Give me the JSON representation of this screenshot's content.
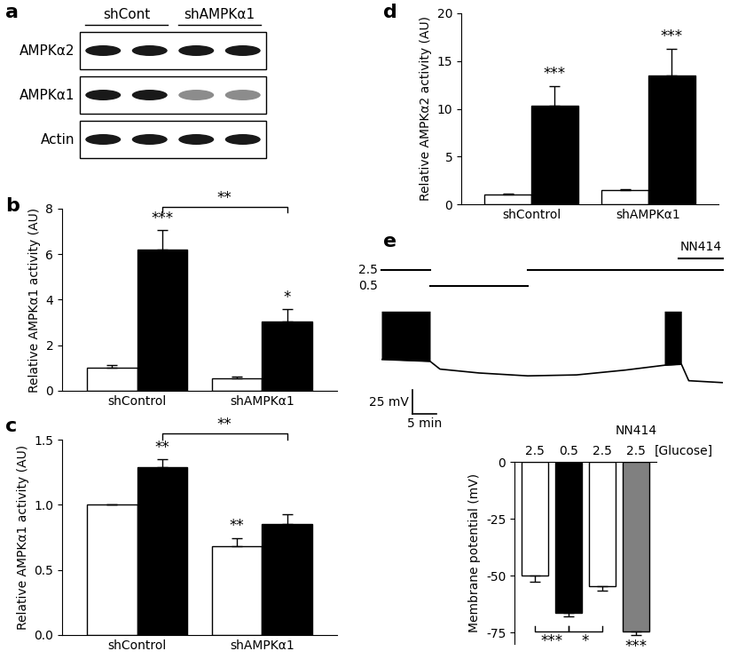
{
  "chart_data": [
    {
      "type": "blot",
      "panel_label": "a",
      "groups": [
        "shCont",
        "shAMPKα1"
      ],
      "rows": [
        "AMPKα2",
        "AMPKα1",
        "Actin"
      ]
    },
    {
      "type": "bar",
      "panel_label": "b",
      "categories": [
        "shControl",
        "shAMPKα1"
      ],
      "ylabel": "Relative AMPKα1 activity (AU)",
      "ylim": [
        0,
        8
      ],
      "yticks": [
        0,
        2,
        4,
        6,
        8
      ],
      "series": [
        {
          "color": "#ffffff",
          "values": [
            1.0,
            0.55
          ],
          "errors": [
            0.15,
            0.08
          ]
        },
        {
          "color": "#000000",
          "values": [
            6.2,
            3.03
          ],
          "errors": [
            0.85,
            0.55
          ]
        }
      ],
      "annotations": [
        {
          "text": "***",
          "at": [
            1,
            0
          ]
        },
        {
          "text": "*",
          "at": [
            1,
            1
          ]
        }
      ],
      "brackets": [
        {
          "text": "**",
          "from": [
            1,
            0
          ],
          "to": [
            1,
            1
          ]
        }
      ]
    },
    {
      "type": "bar",
      "panel_label": "c",
      "categories": [
        "shControl",
        "shAMPKα1"
      ],
      "ylabel": "Relative AMPKα1 activity (AU)",
      "ylim": [
        0,
        1.5
      ],
      "yticks": [
        {
          "value": 0,
          "label": "0.0"
        },
        0.5,
        {
          "value": 1,
          "label": "1.0"
        },
        1.5
      ],
      "series": [
        {
          "color": "#ffffff",
          "values": [
            1.0,
            0.685
          ],
          "errors": [
            0.0,
            0.06
          ]
        },
        {
          "color": "#000000",
          "values": [
            1.29,
            0.85
          ],
          "errors": [
            0.06,
            0.08
          ]
        }
      ],
      "annotations": [
        {
          "text": "**",
          "at": [
            1,
            0
          ]
        },
        {
          "text": "**",
          "at": [
            0,
            1
          ]
        }
      ],
      "brackets": [
        {
          "text": "**",
          "from": [
            1,
            0
          ],
          "to": [
            1,
            1
          ]
        }
      ]
    },
    {
      "type": "bar",
      "panel_label": "d",
      "categories": [
        "shControl",
        "shAMPKα1"
      ],
      "ylabel": "Relative AMPKα2 activity (AU)",
      "ylim": [
        0,
        20
      ],
      "yticks": [
        0,
        5,
        10,
        15,
        20
      ],
      "series": [
        {
          "color": "#ffffff",
          "values": [
            1.0,
            1.5
          ],
          "errors": [
            0.1,
            0.1
          ]
        },
        {
          "color": "#000000",
          "values": [
            10.3,
            13.5
          ],
          "errors": [
            2.1,
            2.8
          ]
        }
      ],
      "annotations": [
        {
          "text": "***",
          "at": [
            1,
            0
          ]
        },
        {
          "text": "***",
          "at": [
            1,
            1
          ]
        }
      ]
    },
    {
      "type": "trace",
      "panel_label": "e",
      "tick_labels": false,
      "x": [
        0,
        10,
        12,
        20,
        30,
        40,
        50,
        58,
        61.5,
        63,
        70
      ],
      "values": [
        -50,
        -52,
        -60,
        -64,
        -67,
        -66,
        -61,
        -56,
        -55,
        -72,
        -74
      ],
      "bursts": [
        {
          "start": 0,
          "end": 10,
          "peak": 0
        },
        {
          "start": 58,
          "end": 61.5,
          "peak": 0
        }
      ],
      "conditions": [
        {
          "label": "2.5",
          "segments": [
            [
              0,
              10
            ],
            [
              30,
              70
            ]
          ]
        },
        {
          "label": "0.5",
          "segments": [
            [
              10,
              30
            ]
          ]
        }
      ],
      "drug": {
        "label": "NN414",
        "start": 61,
        "end": 70
      },
      "xlim": [
        0,
        70
      ],
      "ylim": [
        -110,
        60
      ],
      "scale_bar": {
        "voltage": 25,
        "voltage_label": "25 mV",
        "time": 5,
        "time_label": "5 min"
      }
    },
    {
      "type": "bar",
      "panel_label": "e",
      "categories": [
        "2.5",
        "0.5",
        "2.5",
        "2.5"
      ],
      "xlabel": "[Glucose]",
      "ylabel": "Membrane potential (mV)",
      "ylim": [
        -80,
        0
      ],
      "yticks": [
        -75,
        -50,
        -25,
        0
      ],
      "values": [
        -50,
        -66.5,
        -54.5,
        -74.5
      ],
      "errors": [
        2.5,
        1.5,
        2.0,
        1.5
      ],
      "colors": [
        "#ffffff",
        "#000000",
        "#ffffff",
        "#808080"
      ],
      "group_labels": [
        {
          "text": "NN414",
          "category": 3
        }
      ],
      "annotations": [
        {
          "text": "***",
          "at": 3
        }
      ],
      "brackets": [
        {
          "text": "***",
          "from": 0,
          "to": 1
        },
        {
          "text": "*",
          "from": 1,
          "to": 2
        }
      ]
    }
  ]
}
